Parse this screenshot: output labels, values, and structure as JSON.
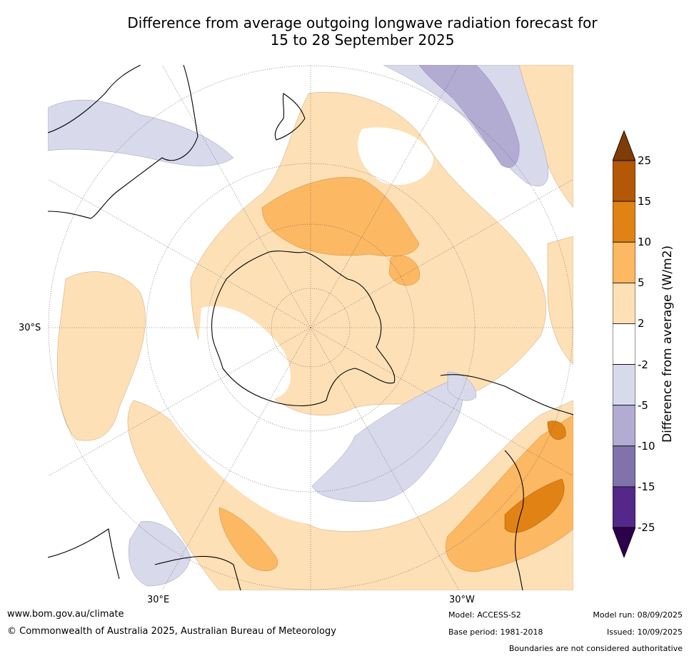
{
  "title": {
    "line1": "Difference from average outgoing longwave radiation forecast for",
    "line2": "15 to 28 September 2025"
  },
  "map": {
    "projection": "south-polar-stereographic",
    "labels": {
      "lat30s": "30°S",
      "lon30e": "30°E",
      "lon30w": "30°W"
    }
  },
  "colorbar": {
    "label": "Difference from average (W/m2)",
    "ticks": [
      "25",
      "15",
      "10",
      "5",
      "2",
      "-2",
      "-5",
      "-10",
      "-15",
      "-25"
    ],
    "bins": [
      {
        "range": "15 to 25",
        "color": "#b35806"
      },
      {
        "range": "10 to 15",
        "color": "#e08214"
      },
      {
        "range": "5 to 10",
        "color": "#fdb863"
      },
      {
        "range": "2 to 5",
        "color": "#fee0b6"
      },
      {
        "range": "-2 to 2",
        "color": "#ffffff"
      },
      {
        "range": "-5 to -2",
        "color": "#d8daeb"
      },
      {
        "range": "-10 to -5",
        "color": "#b2abd2"
      },
      {
        "range": "-15 to -10",
        "color": "#8073ac"
      },
      {
        "range": "-25 to -15",
        "color": "#542788"
      }
    ],
    "over_color": "#7f3b08",
    "under_color": "#2d004b"
  },
  "footer": {
    "website": "www.bom.gov.au/climate",
    "copyright": "© Commonwealth of Australia 2025, Australian Bureau of Meteorology",
    "model": "Model: ACCESS-S2",
    "base_period": "Base period: 1981-2018",
    "model_run": "Model run: 08/09/2025",
    "issued": "Issued: 10/09/2025",
    "disclaimer": "Boundaries are not considered authoritative"
  }
}
